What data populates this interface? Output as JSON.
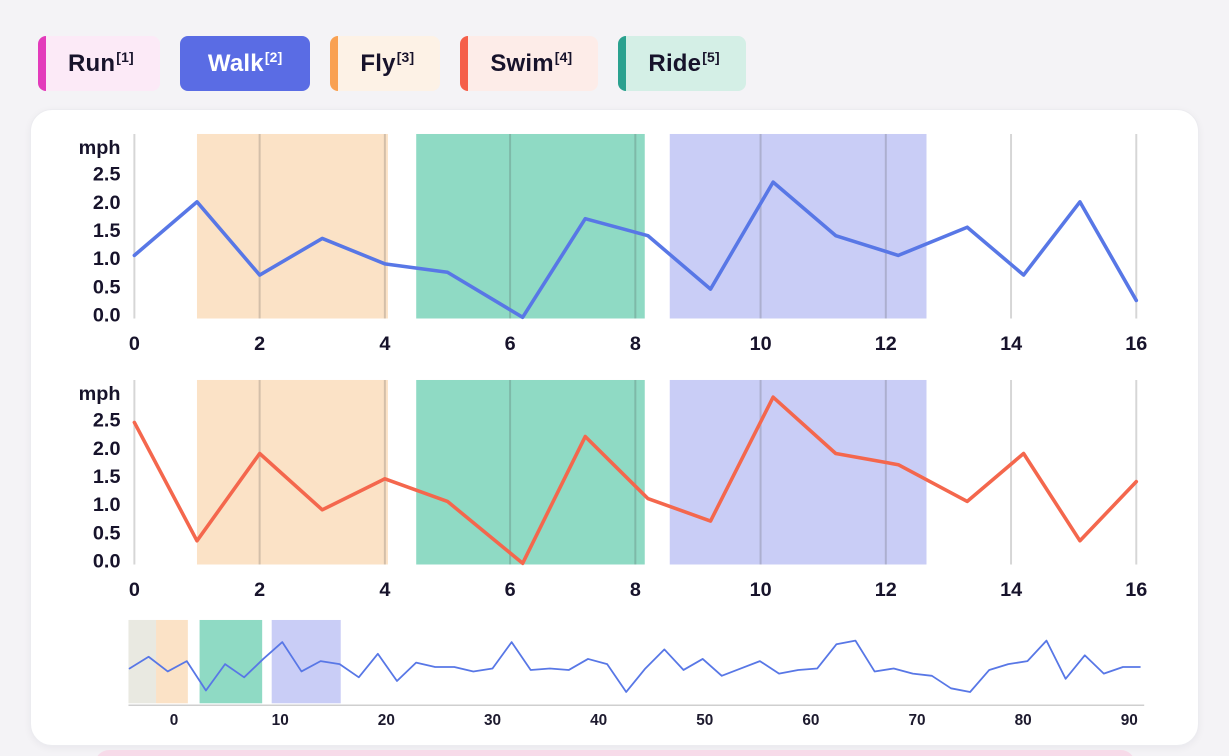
{
  "page": {
    "background": "#f4f3f6",
    "card_background": "#ffffff",
    "axis_text_color": "#17132b",
    "grid_color": "#d6d6d6",
    "next_panel_color": "#f7dbe9"
  },
  "legend": {
    "items": [
      {
        "label": "Run",
        "hotkey": "[1]",
        "accent": "#e33bbb",
        "bg": "#fceaf7",
        "text": "#17132b",
        "selected": false
      },
      {
        "label": "Walk",
        "hotkey": "[2]",
        "accent": "#5a6ce4",
        "bg": "#5a6ce4",
        "text": "#ffffff",
        "selected": true
      },
      {
        "label": "Fly",
        "hotkey": "[3]",
        "accent": "#f9a152",
        "bg": "#fdf2e6",
        "text": "#17132b",
        "selected": false
      },
      {
        "label": "Swim",
        "hotkey": "[4]",
        "accent": "#f55f49",
        "bg": "#fdece8",
        "text": "#17132b",
        "selected": false
      },
      {
        "label": "Ride",
        "hotkey": "[5]",
        "accent": "#2aa18f",
        "bg": "#d4efe6",
        "text": "#17132b",
        "selected": false
      }
    ]
  },
  "chart_data": [
    {
      "type": "line",
      "name": "speed-chart-top",
      "title": "",
      "ylabel": "mph",
      "xlabel": "",
      "x": [
        0,
        1,
        2,
        3,
        4,
        5,
        6.2,
        7.2,
        8.2,
        9.2,
        10.2,
        11.2,
        12.2,
        13.3,
        14.2,
        15.1,
        16
      ],
      "series": [
        {
          "name": "Walk",
          "color": "#5877e6",
          "values": [
            1.05,
            2.0,
            0.7,
            1.35,
            0.9,
            0.75,
            -0.05,
            1.7,
            1.4,
            0.45,
            2.35,
            1.4,
            1.05,
            1.55,
            0.7,
            2.0,
            0.25
          ]
        }
      ],
      "xlim": [
        0,
        16
      ],
      "ylim": [
        0,
        2.5
      ],
      "xticks": [
        0,
        2,
        4,
        6,
        8,
        10,
        12,
        14,
        16
      ],
      "yticks": [
        0,
        0.5,
        1,
        1.5,
        2,
        2.5
      ],
      "grid": "vertical-only",
      "bands": [
        {
          "from": 1.0,
          "to": 4.05,
          "color": "#fbe2c6"
        },
        {
          "from": 4.5,
          "to": 8.15,
          "color": "#8fdac4"
        },
        {
          "from": 8.55,
          "to": 12.65,
          "color": "#c9cdf6"
        }
      ]
    },
    {
      "type": "line",
      "name": "speed-chart-bottom",
      "title": "",
      "ylabel": "mph",
      "xlabel": "",
      "x": [
        0,
        1,
        2,
        3,
        4,
        5,
        6.2,
        7.2,
        8.2,
        9.2,
        10.2,
        11.2,
        12.2,
        13.3,
        14.2,
        15.1,
        16
      ],
      "series": [
        {
          "name": "Swim",
          "color": "#f4674d",
          "values": [
            2.45,
            0.35,
            1.9,
            0.9,
            1.45,
            1.05,
            -0.05,
            2.2,
            1.1,
            0.7,
            2.9,
            1.9,
            1.7,
            1.05,
            1.9,
            0.35,
            1.4
          ]
        }
      ],
      "xlim": [
        0,
        16
      ],
      "ylim": [
        0,
        2.5
      ],
      "xticks": [
        0,
        2,
        4,
        6,
        8,
        10,
        12,
        14,
        16
      ],
      "yticks": [
        0,
        0.5,
        1,
        1.5,
        2,
        2.5
      ],
      "grid": "vertical-only",
      "bands": [
        {
          "from": 1.0,
          "to": 4.05,
          "color": "#fbe2c6"
        },
        {
          "from": 4.5,
          "to": 8.15,
          "color": "#8fdac4"
        },
        {
          "from": 8.55,
          "to": 12.65,
          "color": "#c9cdf6"
        }
      ]
    },
    {
      "type": "line",
      "name": "timeline-overview",
      "title": "",
      "ylabel": "",
      "xlabel": "",
      "x": [
        -4.2,
        -2.4,
        -0.6,
        1.2,
        3.0,
        4.8,
        6.6,
        8.4,
        10.2,
        12.0,
        13.8,
        15.6,
        17.4,
        19.2,
        21.0,
        22.8,
        24.6,
        26.4,
        28.2,
        30.0,
        31.8,
        33.6,
        35.4,
        37.2,
        39.0,
        40.8,
        42.6,
        44.4,
        46.2,
        48.0,
        49.8,
        51.6,
        53.4,
        55.2,
        57.0,
        58.8,
        60.6,
        62.4,
        64.2,
        66.0,
        67.8,
        69.6,
        71.4,
        73.2,
        75.0,
        76.8,
        78.6,
        80.4,
        82.2,
        84.0,
        85.8,
        87.6,
        89.4,
        91.0
      ],
      "series": [
        {
          "name": "overview",
          "color": "#5877e6",
          "values": [
            0.42,
            0.58,
            0.38,
            0.52,
            0.12,
            0.48,
            0.3,
            0.55,
            0.78,
            0.38,
            0.52,
            0.48,
            0.3,
            0.62,
            0.25,
            0.5,
            0.44,
            0.44,
            0.38,
            0.42,
            0.78,
            0.4,
            0.42,
            0.4,
            0.55,
            0.48,
            0.1,
            0.42,
            0.68,
            0.4,
            0.55,
            0.32,
            0.42,
            0.52,
            0.35,
            0.4,
            0.42,
            0.75,
            0.8,
            0.38,
            0.42,
            0.35,
            0.32,
            0.15,
            0.1,
            0.4,
            0.48,
            0.52,
            0.8,
            0.28,
            0.6,
            0.35,
            0.44,
            0.44
          ]
        }
      ],
      "xlim": [
        -4.2,
        91
      ],
      "ylim": [
        0,
        1
      ],
      "xticks": [
        0,
        10,
        20,
        30,
        40,
        50,
        60,
        70,
        80,
        90
      ],
      "grid": "off",
      "bands": [
        {
          "from": -4.3,
          "to": -1.7,
          "color": "#e9e9e1"
        },
        {
          "from": -1.7,
          "to": 1.3,
          "color": "#fbe2c6"
        },
        {
          "from": 2.4,
          "to": 8.3,
          "color": "#8fdac4"
        },
        {
          "from": 9.2,
          "to": 15.7,
          "color": "#c9cdf6"
        }
      ]
    }
  ]
}
